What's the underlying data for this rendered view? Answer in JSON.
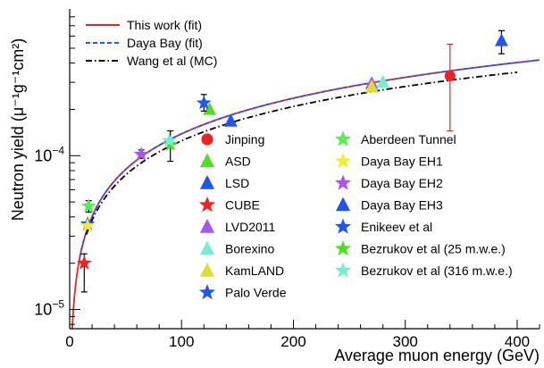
{
  "chart_data": {
    "type": "scatter",
    "title": "",
    "xlabel": "Average muon energy (GeV)",
    "ylabel": "Neutron yield (μ⁻¹g⁻¹cm²)",
    "x_range": [
      0,
      420
    ],
    "y_range": [
      7.5e-06,
      0.0009
    ],
    "y_scale": "log",
    "x_ticks": [
      0,
      100,
      200,
      300,
      400
    ],
    "y_tick_labels": [
      {
        "value": 1e-05,
        "base": "10",
        "exp": "−5"
      },
      {
        "value": 0.0001,
        "base": "10",
        "exp": "−4"
      }
    ],
    "grid": false,
    "legend_position": "top-left and center",
    "curves": [
      {
        "name": "This work (fit)",
        "color": "#ee2222",
        "style": "solid",
        "a": 4e-06,
        "b": 0.77,
        "x_start": 0.0,
        "x_end": 420
      },
      {
        "name": "Daya Bay (fit)",
        "color": "#2255ee",
        "style": "dashed",
        "a": 4e-06,
        "b": 0.77,
        "x_start": 9.0,
        "x_end": 420
      },
      {
        "name": "Wang et al (MC)",
        "color": "#000000",
        "style": "dashdot",
        "a": 4.14e-06,
        "b": 0.74,
        "x_start": 15.0,
        "x_end": 400
      }
    ],
    "series": [
      {
        "name": "Jinping",
        "marker": "circle",
        "color": "#ee2222",
        "points": [
          {
            "x": 340,
            "y": 0.00033,
            "err_low": 0.000145,
            "err_high": 0.00053
          }
        ]
      },
      {
        "name": "ASD",
        "marker": "triangle-up",
        "color": "#55dd22",
        "points": [
          {
            "x": 125,
            "y": 0.0002
          }
        ]
      },
      {
        "name": "LSD",
        "marker": "triangle-up",
        "color": "#2255ee",
        "points": [
          {
            "x": 144,
            "y": 0.000168
          }
        ]
      },
      {
        "name": "CUBE",
        "marker": "star",
        "color": "#ee2222",
        "points": [
          {
            "x": 13,
            "y": 2e-05,
            "err_low": 1.3e-05,
            "err_high": 2.3e-05
          }
        ]
      },
      {
        "name": "LVD2011",
        "marker": "triangle-up",
        "color": "#aa55ee",
        "points": [
          {
            "x": 270,
            "y": 0.000295
          }
        ]
      },
      {
        "name": "Borexino",
        "marker": "triangle-up",
        "color": "#77eecc",
        "points": [
          {
            "x": 280,
            "y": 0.0003
          }
        ]
      },
      {
        "name": "KamLAND",
        "marker": "triangle-up",
        "color": "#dddd33",
        "points": [
          {
            "x": 270,
            "y": 0.00028
          }
        ]
      },
      {
        "name": "Palo Verde",
        "marker": "star",
        "color": "#2255ee",
        "points": [
          {
            "x": 16,
            "y": 3.6e-05
          }
        ]
      },
      {
        "name": "Aberdeen Tunnel",
        "marker": "star",
        "color": "#55ee55",
        "points": [
          {
            "x": 17,
            "y": 4.7e-05,
            "err_low": 4.3e-05,
            "err_high": 5.1e-05
          }
        ]
      },
      {
        "name": "Daya Bay EH1",
        "marker": "star",
        "color": "#eeee33",
        "points": [
          {
            "x": 16,
            "y": 3.5e-05
          }
        ]
      },
      {
        "name": "Daya Bay EH2",
        "marker": "star",
        "color": "#aa55ee",
        "points": [
          {
            "x": 64,
            "y": 0.000102,
            "err_low": 9.6e-05,
            "err_high": 0.000109
          }
        ]
      },
      {
        "name": "Daya Bay EH3",
        "marker": "triangle-up",
        "color": "#2255ee",
        "points": [
          {
            "x": 386,
            "y": 0.00056,
            "err_low": 0.00046,
            "err_high": 0.00065
          }
        ]
      },
      {
        "name": "Enikeev  et al",
        "marker": "star",
        "color": "#2255ee",
        "points": [
          {
            "x": 120,
            "y": 0.00022,
            "err_low": 0.000195,
            "err_high": 0.00025
          }
        ]
      },
      {
        "name": "Bezrukov et al (25 m.w.e.)",
        "marker": "star",
        "color": "#55dd22",
        "points": [
          {
            "x": 90,
            "y": 0.000118,
            "err_low": 9.2e-05,
            "err_high": 0.000145
          }
        ]
      },
      {
        "name": "Bezrukov et al (316 m.w.e.)",
        "marker": "star",
        "color": "#77eecc",
        "points": [
          {
            "x": 89,
            "y": 0.000125
          }
        ]
      }
    ]
  }
}
